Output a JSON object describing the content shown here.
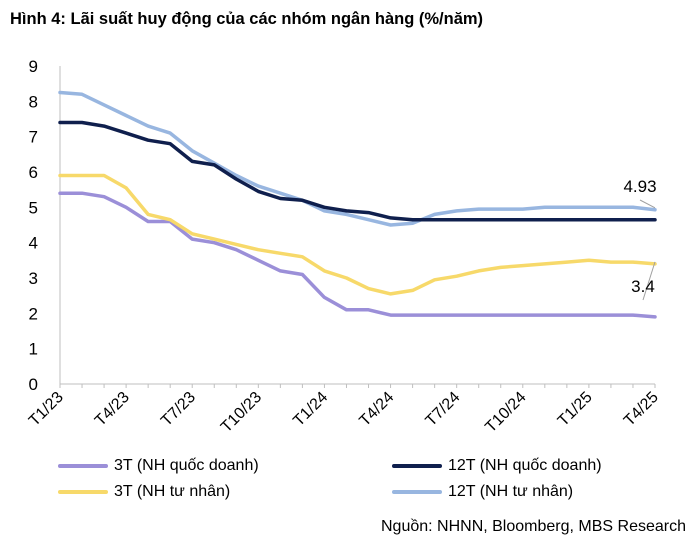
{
  "title": "Hình 4: Lãi suất huy động của các nhóm ngân hàng (%/năm)",
  "source": "Nguồn: NHNN, Bloomberg, MBS Research",
  "colors": {
    "purple": "#9b8fd8",
    "navy": "#0f1f4d",
    "yellow": "#f7d96a",
    "lightblue": "#98b6e0",
    "axis": "#bfbfbf"
  },
  "chart_data": {
    "type": "line",
    "x": [
      "T1/23",
      "T2/23",
      "T3/23",
      "T4/23",
      "T5/23",
      "T6/23",
      "T7/23",
      "T8/23",
      "T9/23",
      "T10/23",
      "T11/23",
      "T12/23",
      "T1/24",
      "T2/24",
      "T3/24",
      "T4/24",
      "T5/24",
      "T6/24",
      "T7/24",
      "T8/24",
      "T9/24",
      "T10/24",
      "T11/24",
      "T12/24",
      "T1/25",
      "T2/25",
      "T3/25",
      "T4/25"
    ],
    "x_tick_labels": [
      "T1/23",
      "T4/23",
      "T7/23",
      "T10/23",
      "T1/24",
      "T4/24",
      "T7/24",
      "T10/24",
      "T1/25",
      "T4/25"
    ],
    "ylim": [
      0,
      9
    ],
    "yticks": [
      0,
      1,
      2,
      3,
      4,
      5,
      6,
      7,
      8,
      9
    ],
    "series": [
      {
        "name": "3T (NH quốc doanh)",
        "color": "#9b8fd8",
        "values": [
          5.4,
          5.4,
          5.3,
          5.0,
          4.6,
          4.6,
          4.1,
          4.0,
          3.8,
          3.5,
          3.2,
          3.1,
          2.45,
          2.1,
          2.1,
          1.95,
          1.95,
          1.95,
          1.95,
          1.95,
          1.95,
          1.95,
          1.95,
          1.95,
          1.95,
          1.95,
          1.95,
          1.9
        ]
      },
      {
        "name": "12T (NH quốc doanh)",
        "color": "#0f1f4d",
        "values": [
          7.4,
          7.4,
          7.3,
          7.1,
          6.9,
          6.8,
          6.3,
          6.2,
          5.8,
          5.45,
          5.25,
          5.2,
          5.0,
          4.9,
          4.85,
          4.7,
          4.65,
          4.65,
          4.65,
          4.65,
          4.65,
          4.65,
          4.65,
          4.65,
          4.65,
          4.65,
          4.65,
          4.65
        ]
      },
      {
        "name": "3T (NH tư nhân)",
        "color": "#f7d96a",
        "values": [
          5.9,
          5.9,
          5.9,
          5.55,
          4.8,
          4.65,
          4.25,
          4.1,
          3.95,
          3.8,
          3.7,
          3.6,
          3.2,
          3.0,
          2.7,
          2.55,
          2.65,
          2.95,
          3.05,
          3.2,
          3.3,
          3.35,
          3.4,
          3.45,
          3.5,
          3.45,
          3.45,
          3.4
        ]
      },
      {
        "name": "12T (NH tư nhân)",
        "color": "#98b6e0",
        "values": [
          8.25,
          8.2,
          7.9,
          7.6,
          7.3,
          7.1,
          6.6,
          6.25,
          5.9,
          5.6,
          5.4,
          5.2,
          4.9,
          4.8,
          4.65,
          4.5,
          4.55,
          4.8,
          4.9,
          4.95,
          4.95,
          4.95,
          5.0,
          5.0,
          5.0,
          5.0,
          5.0,
          4.93
        ]
      }
    ],
    "annotations": [
      {
        "text": "4.93",
        "series": 3,
        "index": 27
      },
      {
        "text": "3.4",
        "series": 2,
        "index": 27
      }
    ],
    "legend_position": "bottom",
    "grid": false
  }
}
